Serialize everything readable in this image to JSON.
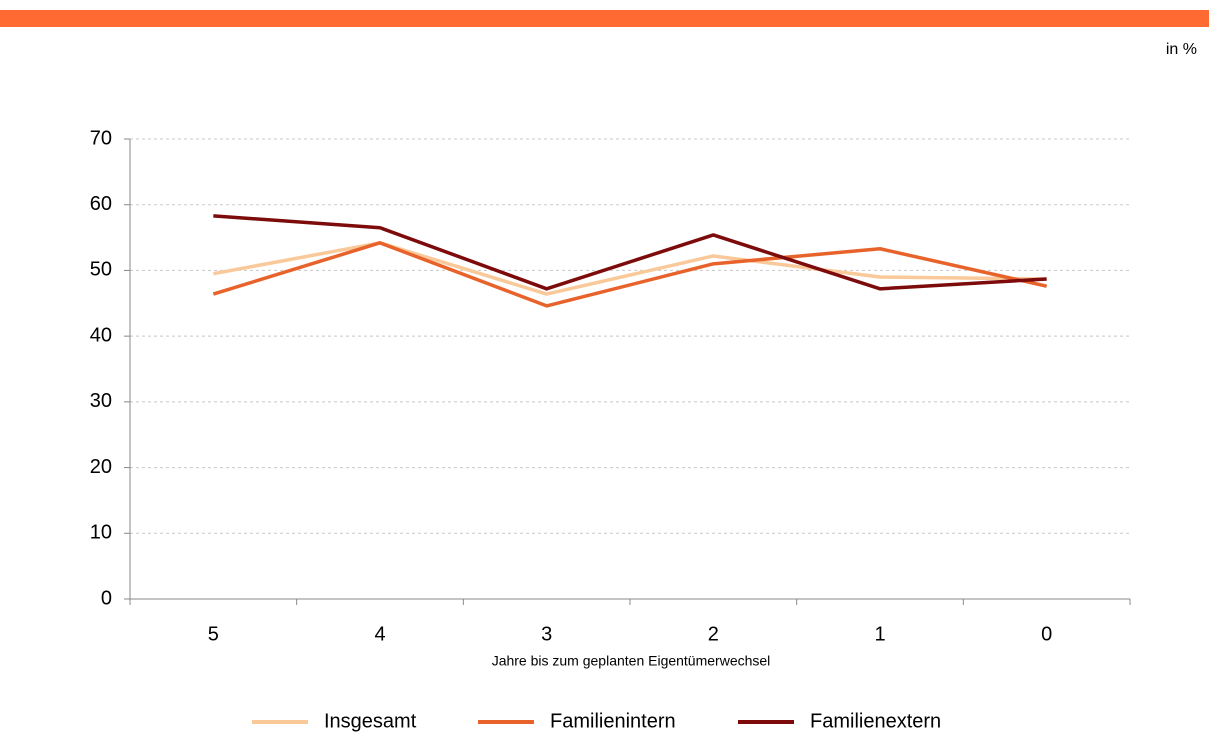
{
  "chart_data": {
    "type": "line",
    "unit_label": "in %",
    "x_label": "Jahre bis zum geplanten Eigentümerwechsel",
    "categories": [
      "5",
      "4",
      "3",
      "2",
      "1",
      "0"
    ],
    "series": [
      {
        "name": "Insgesamt",
        "color": "#f9c99a",
        "values": [
          49.5,
          54.2,
          46.4,
          52.2,
          49.0,
          48.7
        ]
      },
      {
        "name": "Familienintern",
        "color": "#e8632b",
        "values": [
          46.4,
          54.2,
          44.6,
          51.0,
          53.3,
          47.6
        ]
      },
      {
        "name": "Familienextern",
        "color": "#7d0b0b",
        "values": [
          58.3,
          56.5,
          47.2,
          55.4,
          47.2,
          48.7
        ]
      }
    ],
    "ylim": [
      0,
      70
    ],
    "yticks": [
      0,
      10,
      20,
      30,
      40,
      50,
      60,
      70
    ],
    "grid": true,
    "legend": "bottom"
  }
}
